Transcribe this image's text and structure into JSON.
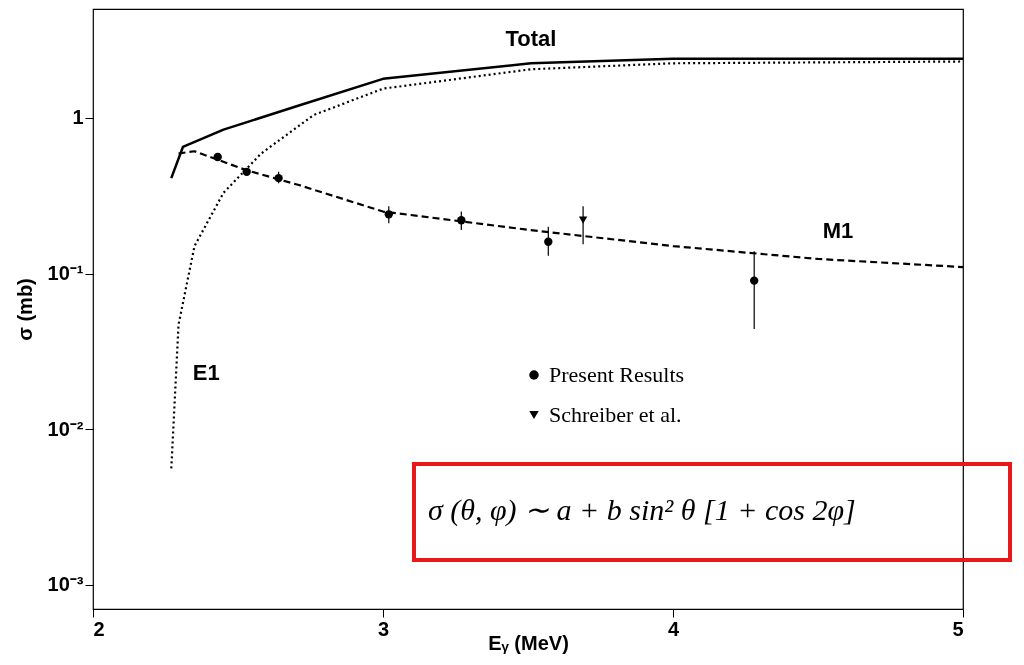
{
  "chart_data": {
    "type": "line",
    "xlabel": "Eᵧ (MeV)",
    "ylabel": "σ (mb)",
    "log": "y",
    "xlim": [
      2,
      5
    ],
    "xticks": [
      2,
      3,
      4,
      5
    ],
    "ylim": [
      0.0007,
      5
    ],
    "yticks": [
      {
        "value": 0.001,
        "label": "10⁻³"
      },
      {
        "value": 0.01,
        "label": "10⁻²"
      },
      {
        "value": 0.1,
        "label": "10⁻¹"
      },
      1
    ],
    "grid": false,
    "legend": "right",
    "annotations": [
      "σ (θ, φ) ∼ a + b sin² θ [1 + cos 2φ]"
    ],
    "series": [
      {
        "name": "Total",
        "line_style": "solid",
        "color": "#000000",
        "x": [
          2.27,
          2.31,
          2.45,
          2.71,
          3.0,
          3.51,
          4.0,
          5.0
        ],
        "values": [
          0.41,
          0.65,
          0.84,
          1.2,
          1.78,
          2.24,
          2.4,
          2.4
        ]
      },
      {
        "name": "M1",
        "line_style": "dashed",
        "color": "#000000",
        "x": [
          2.295,
          2.35,
          2.53,
          2.71,
          3.0,
          3.51,
          4.0,
          4.5,
          5.0
        ],
        "values": [
          0.59,
          0.61,
          0.46,
          0.37,
          0.25,
          0.19,
          0.15,
          0.124,
          0.11
        ]
      },
      {
        "name": "E1",
        "line_style": "dotted",
        "color": "#000000",
        "x": [
          2.27,
          2.295,
          2.35,
          2.45,
          2.58,
          2.76,
          3.0,
          3.51,
          4.0,
          5.0
        ],
        "values": [
          0.0056,
          0.047,
          0.15,
          0.33,
          0.59,
          1.04,
          1.54,
          2.05,
          2.24,
          2.3
        ]
      },
      {
        "name": "Present Results",
        "type": "scatter",
        "marker": "circle",
        "color": "#000000",
        "x": [
          2.43,
          2.53,
          2.64,
          3.02,
          3.27,
          3.57,
          4.28
        ],
        "values": [
          0.56,
          0.45,
          0.41,
          0.24,
          0.22,
          0.16,
          0.09
        ],
        "errors": [
          null,
          null,
          [
            0.38,
            0.45
          ],
          [
            0.21,
            0.27
          ],
          [
            0.19,
            0.25
          ],
          [
            0.13,
            0.2
          ],
          [
            0.044,
            0.139
          ]
        ]
      },
      {
        "name": "Schreiber et al.",
        "type": "scatter",
        "marker": "triangle",
        "color": "#000000",
        "x": [
          3.69
        ],
        "values": [
          0.22
        ],
        "errors": [
          [
            0.154,
            0.27
          ]
        ]
      }
    ]
  }
}
